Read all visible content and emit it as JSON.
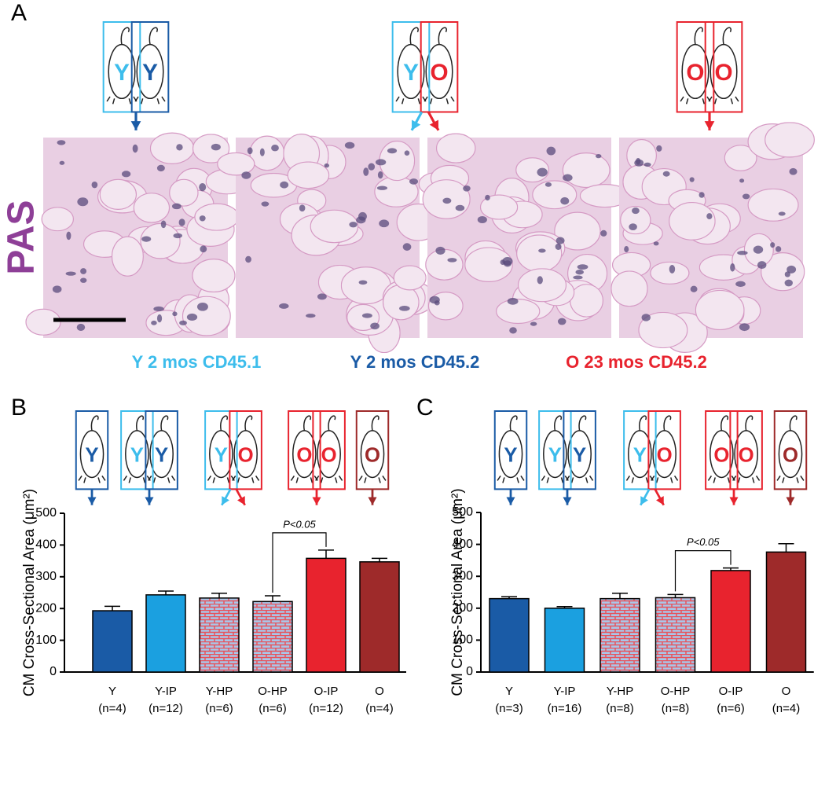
{
  "panel_labels": [
    "A",
    "B",
    "C"
  ],
  "panel_a": {
    "stain_label": "PAS",
    "icons": [
      [
        {
          "letter": "Y",
          "color": "#3dbdec"
        },
        {
          "letter": "Y",
          "color": "#1a5ba6"
        }
      ],
      [
        {
          "letter": "Y",
          "color": "#3dbdec"
        },
        {
          "letter": "O",
          "color": "#e8232e"
        }
      ],
      [
        {
          "letter": "O",
          "color": "#e8232e"
        },
        {
          "letter": "O",
          "color": "#e8232e"
        }
      ]
    ],
    "legend": [
      {
        "text": "Y 2 mos CD45.1",
        "color": "#3dbdec"
      },
      {
        "text": "Y 2 mos CD45.2",
        "color": "#1a5ba6"
      },
      {
        "text": "O 23 mos CD45.2",
        "color": "#e8232e"
      }
    ]
  },
  "chart_data": [
    {
      "type": "bar",
      "categories": [
        "Y",
        "Y-IP",
        "Y-HP",
        "O-HP",
        "O-IP",
        "O"
      ],
      "sample_sizes": [
        "(n=4)",
        "(n=12)",
        "(n=6)",
        "(n=6)",
        "(n=12)",
        "(n=4)"
      ],
      "values": [
        193,
        243,
        233,
        222,
        358,
        347
      ],
      "errors": [
        14,
        12,
        15,
        18,
        26,
        11
      ],
      "colors": [
        "#1a5ba6",
        "#1ba0e0",
        "#e8525a",
        "#e8525a",
        "#e8232e",
        "#9e2a2a"
      ],
      "brick_pattern": [
        false,
        false,
        true,
        true,
        false,
        false
      ],
      "ylim": [
        0,
        500
      ],
      "yticks": [
        0,
        100,
        200,
        300,
        400,
        500
      ],
      "y_label": "CM Cross-Sectional Area (μm²)",
      "annotation": "P<0.05",
      "icons": [
        [
          {
            "letter": "Y",
            "color": "#1a5ba6"
          }
        ],
        [
          {
            "letter": "Y",
            "color": "#3dbdec"
          },
          {
            "letter": "Y",
            "color": "#1a5ba6"
          }
        ],
        [
          {
            "letter": "Y",
            "color": "#3dbdec"
          },
          {
            "letter": "O",
            "color": "#e8232e"
          }
        ],
        [
          {
            "letter": "O",
            "color": "#e8232e"
          },
          {
            "letter": "O",
            "color": "#e8232e"
          }
        ],
        [
          {
            "letter": "O",
            "color": "#9e2a2a"
          }
        ]
      ]
    },
    {
      "type": "bar",
      "categories": [
        "Y",
        "Y-IP",
        "Y-HP",
        "O-HP",
        "O-IP",
        "O"
      ],
      "sample_sizes": [
        "(n=3)",
        "(n=16)",
        "(n=8)",
        "(n=8)",
        "(n=6)",
        "(n=4)"
      ],
      "values": [
        230,
        200,
        230,
        233,
        318,
        376
      ],
      "errors": [
        6,
        5,
        17,
        10,
        8,
        26
      ],
      "colors": [
        "#1a5ba6",
        "#1ba0e0",
        "#e8525a",
        "#e8525a",
        "#e8232e",
        "#9e2a2a"
      ],
      "brick_pattern": [
        false,
        false,
        true,
        true,
        false,
        false
      ],
      "ylim": [
        0,
        500
      ],
      "yticks": [
        0,
        100,
        200,
        300,
        400,
        500
      ],
      "y_label": "CM Cross-Sectional Area (μm²)",
      "annotation": "P<0.05",
      "icons": [
        [
          {
            "letter": "Y",
            "color": "#1a5ba6"
          }
        ],
        [
          {
            "letter": "Y",
            "color": "#3dbdec"
          },
          {
            "letter": "Y",
            "color": "#1a5ba6"
          }
        ],
        [
          {
            "letter": "Y",
            "color": "#3dbdec"
          },
          {
            "letter": "O",
            "color": "#e8232e"
          }
        ],
        [
          {
            "letter": "O",
            "color": "#e8232e"
          },
          {
            "letter": "O",
            "color": "#e8232e"
          }
        ],
        [
          {
            "letter": "O",
            "color": "#9e2a2a"
          }
        ]
      ]
    }
  ]
}
